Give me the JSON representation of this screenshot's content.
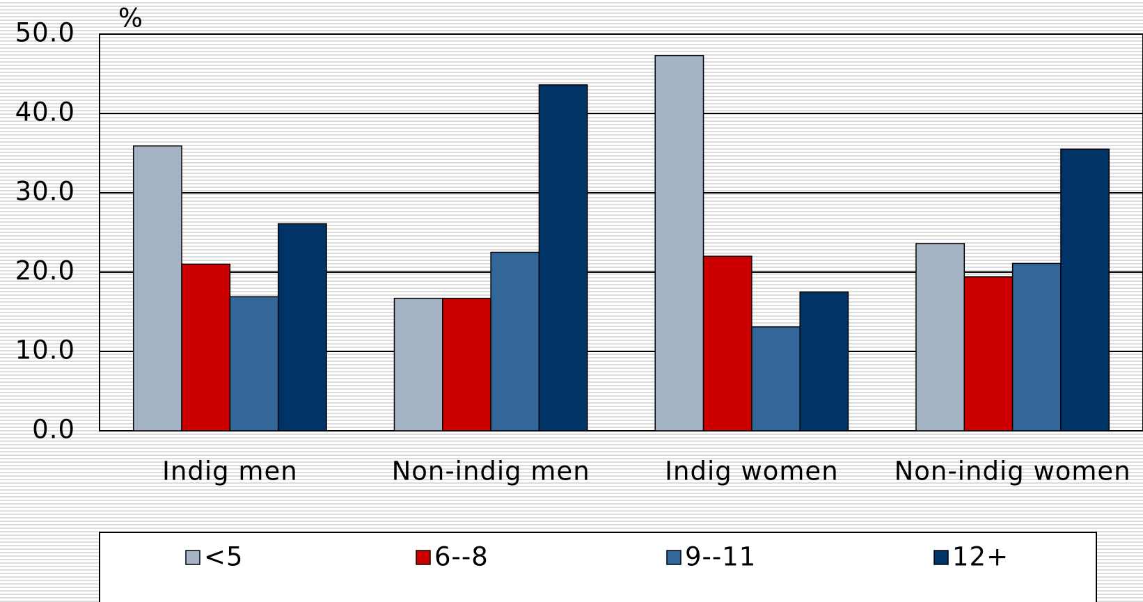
{
  "chart_data": {
    "type": "bar",
    "y_label": "%",
    "categories": [
      "Indig men",
      "Non-indig men",
      "Indig women",
      "Non-indig women"
    ],
    "series": [
      {
        "name": "<5",
        "color": "#a5b4c4",
        "values": [
          35.9,
          16.7,
          47.3,
          23.6
        ]
      },
      {
        "name": "6--8",
        "color": "#cc0000",
        "values": [
          21.0,
          16.7,
          22.0,
          19.4
        ]
      },
      {
        "name": "9--11",
        "color": "#336699",
        "values": [
          16.9,
          22.5,
          13.1,
          21.1
        ]
      },
      {
        "name": "12+",
        "color": "#003366",
        "values": [
          26.1,
          43.6,
          17.5,
          35.5
        ]
      }
    ],
    "ylim": [
      0,
      50
    ],
    "yticks": [
      {
        "value": 0,
        "label": "0.0"
      },
      {
        "value": 10,
        "label": "10.0"
      },
      {
        "value": 20,
        "label": "20.0"
      },
      {
        "value": 30,
        "label": "30.0"
      },
      {
        "value": 40,
        "label": "40.0"
      },
      {
        "value": 50,
        "label": "50.0"
      }
    ],
    "grid": true
  }
}
